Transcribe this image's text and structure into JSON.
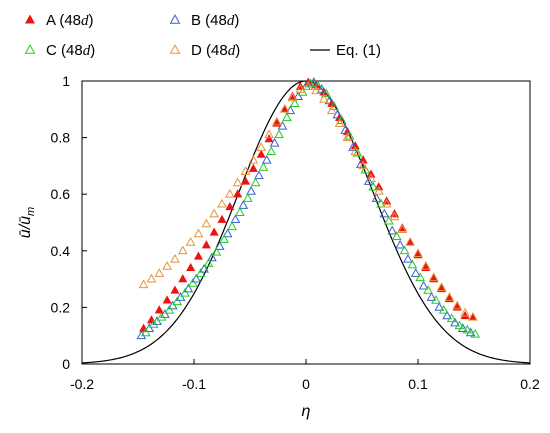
{
  "chart_data": {
    "type": "scatter",
    "xlabel": "η",
    "ylabel": "ū/ūm",
    "ylabel_main": "ū/ū",
    "ylabel_sub": "m",
    "xlim": [
      -0.2,
      0.2
    ],
    "ylim": [
      0,
      1
    ],
    "xticks": [
      "-0.2",
      "-0.1",
      "0",
      "0.1",
      "0.2"
    ],
    "yticks": [
      "0",
      "0.2",
      "0.4",
      "0.6",
      "0.8",
      "1"
    ],
    "grid": false,
    "legend_position": "top",
    "series": [
      {
        "name": "A (48d)",
        "name_main": "A (48",
        "name_var": "d",
        "name_end": ")",
        "marker": "filled-triangle",
        "color": "#ee1111",
        "points": [
          [
            -0.145,
            0.125
          ],
          [
            -0.138,
            0.155
          ],
          [
            -0.131,
            0.19
          ],
          [
            -0.124,
            0.225
          ],
          [
            -0.117,
            0.26
          ],
          [
            -0.11,
            0.3
          ],
          [
            -0.103,
            0.34
          ],
          [
            -0.096,
            0.38
          ],
          [
            -0.089,
            0.42
          ],
          [
            -0.082,
            0.465
          ],
          [
            -0.075,
            0.51
          ],
          [
            -0.068,
            0.555
          ],
          [
            -0.061,
            0.6
          ],
          [
            -0.054,
            0.645
          ],
          [
            -0.047,
            0.69
          ],
          [
            -0.04,
            0.74
          ],
          [
            -0.033,
            0.795
          ],
          [
            -0.026,
            0.85
          ],
          [
            -0.019,
            0.9
          ],
          [
            -0.012,
            0.945
          ],
          [
            -0.005,
            0.98
          ],
          [
            0.002,
            0.995
          ],
          [
            0.009,
            0.985
          ],
          [
            0.016,
            0.96
          ],
          [
            0.023,
            0.92
          ],
          [
            0.03,
            0.87
          ],
          [
            0.037,
            0.82
          ],
          [
            0.044,
            0.77
          ],
          [
            0.051,
            0.72
          ],
          [
            0.058,
            0.67
          ],
          [
            0.065,
            0.625
          ],
          [
            0.072,
            0.575
          ],
          [
            0.079,
            0.53
          ],
          [
            0.086,
            0.48
          ],
          [
            0.093,
            0.43
          ],
          [
            0.1,
            0.385
          ],
          [
            0.107,
            0.34
          ],
          [
            0.114,
            0.3
          ],
          [
            0.121,
            0.265
          ],
          [
            0.128,
            0.23
          ],
          [
            0.135,
            0.2
          ],
          [
            0.142,
            0.17
          ],
          [
            0.149,
            0.165
          ]
        ]
      },
      {
        "name": "B (48d)",
        "name_main": "B (48",
        "name_var": "d",
        "name_end": ")",
        "marker": "open-triangle",
        "color": "#3a5fd0",
        "points": [
          [
            -0.147,
            0.1
          ],
          [
            -0.14,
            0.125
          ],
          [
            -0.133,
            0.15
          ],
          [
            -0.126,
            0.175
          ],
          [
            -0.119,
            0.205
          ],
          [
            -0.112,
            0.235
          ],
          [
            -0.105,
            0.265
          ],
          [
            -0.098,
            0.3
          ],
          [
            -0.091,
            0.335
          ],
          [
            -0.084,
            0.375
          ],
          [
            -0.077,
            0.415
          ],
          [
            -0.07,
            0.46
          ],
          [
            -0.063,
            0.51
          ],
          [
            -0.056,
            0.56
          ],
          [
            -0.049,
            0.61
          ],
          [
            -0.042,
            0.665
          ],
          [
            -0.035,
            0.72
          ],
          [
            -0.028,
            0.78
          ],
          [
            -0.021,
            0.84
          ],
          [
            -0.014,
            0.895
          ],
          [
            -0.007,
            0.945
          ],
          [
            0.0,
            0.98
          ],
          [
            0.007,
            0.995
          ],
          [
            0.014,
            0.97
          ],
          [
            0.021,
            0.93
          ],
          [
            0.028,
            0.88
          ],
          [
            0.035,
            0.825
          ],
          [
            0.042,
            0.765
          ],
          [
            0.049,
            0.705
          ],
          [
            0.056,
            0.645
          ],
          [
            0.063,
            0.585
          ],
          [
            0.07,
            0.53
          ],
          [
            0.077,
            0.47
          ],
          [
            0.084,
            0.42
          ],
          [
            0.091,
            0.37
          ],
          [
            0.098,
            0.32
          ],
          [
            0.105,
            0.275
          ],
          [
            0.112,
            0.235
          ],
          [
            0.119,
            0.2
          ],
          [
            0.126,
            0.17
          ],
          [
            0.133,
            0.145
          ],
          [
            0.14,
            0.125
          ],
          [
            0.147,
            0.11
          ]
        ]
      },
      {
        "name": "C (48d)",
        "name_main": "C (48",
        "name_var": "d",
        "name_end": ")",
        "marker": "open-triangle",
        "color": "#22cc22",
        "points": [
          [
            -0.143,
            0.11
          ],
          [
            -0.136,
            0.14
          ],
          [
            -0.129,
            0.165
          ],
          [
            -0.122,
            0.19
          ],
          [
            -0.115,
            0.22
          ],
          [
            -0.108,
            0.25
          ],
          [
            -0.101,
            0.285
          ],
          [
            -0.094,
            0.32
          ],
          [
            -0.087,
            0.355
          ],
          [
            -0.08,
            0.395
          ],
          [
            -0.073,
            0.44
          ],
          [
            -0.066,
            0.485
          ],
          [
            -0.059,
            0.535
          ],
          [
            -0.052,
            0.585
          ],
          [
            -0.045,
            0.64
          ],
          [
            -0.038,
            0.695
          ],
          [
            -0.031,
            0.75
          ],
          [
            -0.024,
            0.81
          ],
          [
            -0.017,
            0.87
          ],
          [
            -0.01,
            0.92
          ],
          [
            -0.003,
            0.96
          ],
          [
            0.004,
            0.99
          ],
          [
            0.011,
            0.98
          ],
          [
            0.018,
            0.955
          ],
          [
            0.025,
            0.91
          ],
          [
            0.032,
            0.86
          ],
          [
            0.039,
            0.805
          ],
          [
            0.046,
            0.745
          ],
          [
            0.053,
            0.685
          ],
          [
            0.06,
            0.625
          ],
          [
            0.067,
            0.565
          ],
          [
            0.074,
            0.505
          ],
          [
            0.081,
            0.45
          ],
          [
            0.088,
            0.4
          ],
          [
            0.095,
            0.35
          ],
          [
            0.102,
            0.305
          ],
          [
            0.109,
            0.26
          ],
          [
            0.116,
            0.225
          ],
          [
            0.123,
            0.19
          ],
          [
            0.13,
            0.16
          ],
          [
            0.137,
            0.135
          ],
          [
            0.144,
            0.12
          ],
          [
            0.151,
            0.105
          ]
        ]
      },
      {
        "name": "D (48d)",
        "name_main": "D (48",
        "name_var": "d",
        "name_end": ")",
        "marker": "open-triangle",
        "color": "#e8913c",
        "points": [
          [
            -0.145,
            0.28
          ],
          [
            -0.138,
            0.3
          ],
          [
            -0.131,
            0.32
          ],
          [
            -0.124,
            0.345
          ],
          [
            -0.117,
            0.37
          ],
          [
            -0.11,
            0.4
          ],
          [
            -0.103,
            0.43
          ],
          [
            -0.096,
            0.46
          ],
          [
            -0.089,
            0.495
          ],
          [
            -0.082,
            0.53
          ],
          [
            -0.075,
            0.565
          ],
          [
            -0.068,
            0.6
          ],
          [
            -0.061,
            0.64
          ],
          [
            -0.054,
            0.68
          ],
          [
            -0.047,
            0.72
          ],
          [
            -0.04,
            0.765
          ],
          [
            -0.033,
            0.81
          ],
          [
            -0.026,
            0.855
          ],
          [
            -0.019,
            0.9
          ],
          [
            -0.012,
            0.94
          ],
          [
            -0.005,
            0.97
          ],
          [
            0.002,
            0.98
          ],
          [
            0.009,
            0.965
          ],
          [
            0.016,
            0.935
          ],
          [
            0.023,
            0.895
          ],
          [
            0.03,
            0.85
          ],
          [
            0.037,
            0.8
          ],
          [
            0.044,
            0.75
          ],
          [
            0.051,
            0.7
          ],
          [
            0.058,
            0.655
          ],
          [
            0.065,
            0.61
          ],
          [
            0.072,
            0.565
          ],
          [
            0.079,
            0.52
          ],
          [
            0.086,
            0.475
          ],
          [
            0.093,
            0.43
          ],
          [
            0.1,
            0.39
          ],
          [
            0.107,
            0.345
          ],
          [
            0.114,
            0.305
          ],
          [
            0.121,
            0.27
          ],
          [
            0.128,
            0.235
          ],
          [
            0.135,
            0.205
          ],
          [
            0.142,
            0.18
          ],
          [
            0.149,
            0.165
          ]
        ]
      },
      {
        "name": "Eq. (1)",
        "marker": "line",
        "color": "#000000",
        "curve": "gaussian",
        "peak": 1.0,
        "width_eta": 0.0848
      }
    ]
  }
}
